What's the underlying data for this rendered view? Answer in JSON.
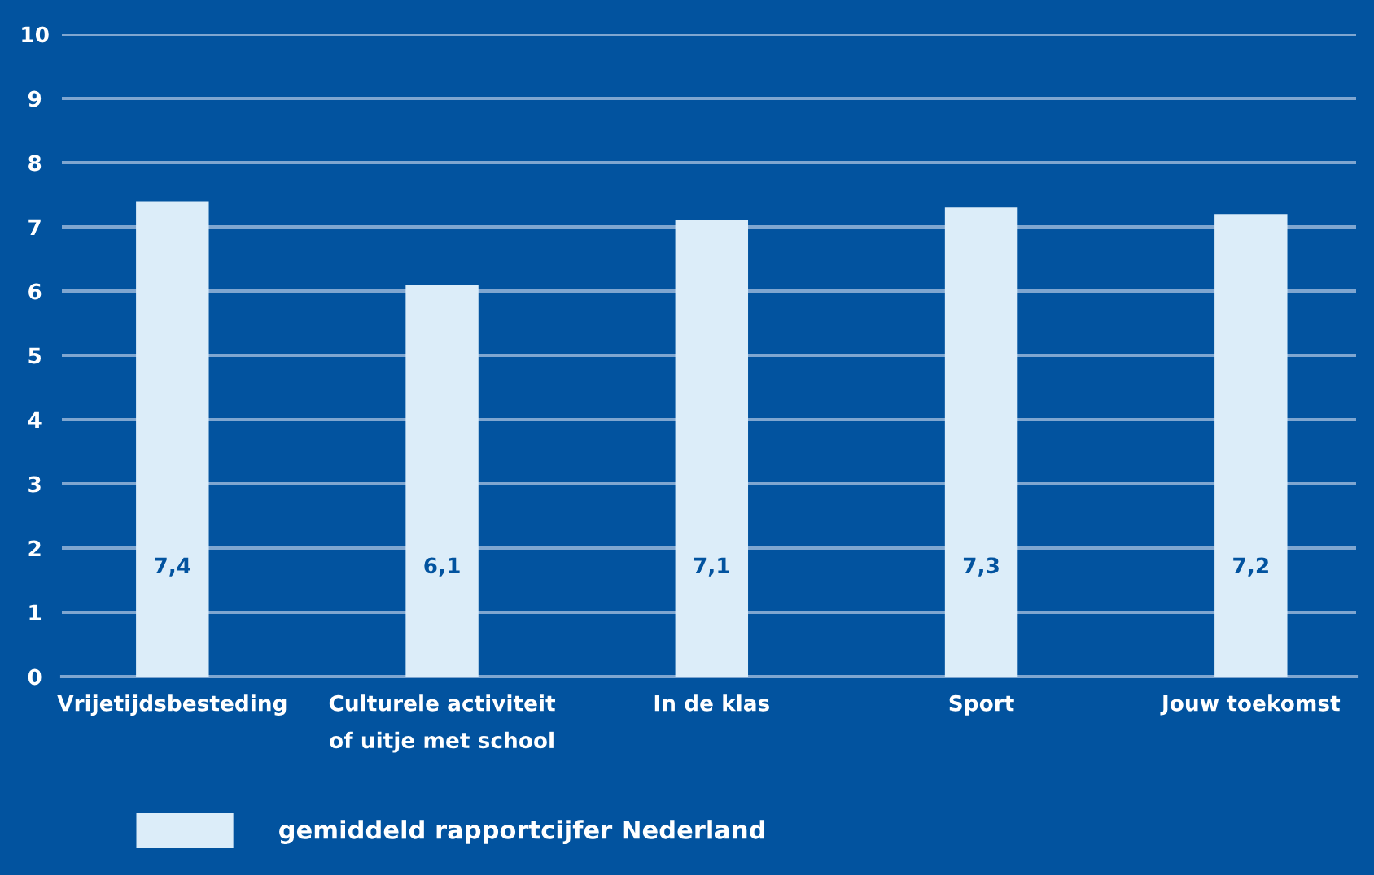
{
  "chart_data": {
    "type": "bar",
    "categories": [
      "Vrijetijdsbesteding",
      "Culturele activiteit\nof uitje met school",
      "In de klas",
      "Sport",
      "Jouw toekomst"
    ],
    "series": [
      {
        "name": "gemiddeld rapportcijfer Nederland",
        "color": "#dcedf9",
        "values": [
          7.4,
          6.1,
          7.1,
          7.3,
          7.2
        ],
        "value_labels": [
          "7,4",
          "6,1",
          "7,1",
          "7,3",
          "7,2"
        ]
      }
    ],
    "ylim": [
      0,
      10
    ],
    "yticks": [
      0,
      1,
      2,
      3,
      4,
      5,
      6,
      7,
      8,
      9,
      10
    ],
    "grid": "y",
    "legend": "bottom left"
  }
}
